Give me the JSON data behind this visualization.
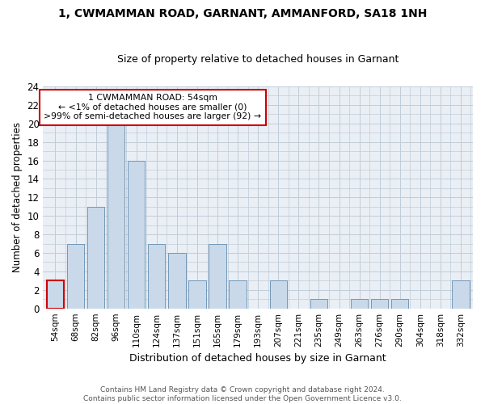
{
  "title": "1, CWMAMMAN ROAD, GARNANT, AMMANFORD, SA18 1NH",
  "subtitle": "Size of property relative to detached houses in Garnant",
  "xlabel": "Distribution of detached houses by size in Garnant",
  "ylabel": "Number of detached properties",
  "categories": [
    "54sqm",
    "68sqm",
    "82sqm",
    "96sqm",
    "110sqm",
    "124sqm",
    "137sqm",
    "151sqm",
    "165sqm",
    "179sqm",
    "193sqm",
    "207sqm",
    "221sqm",
    "235sqm",
    "249sqm",
    "263sqm",
    "276sqm",
    "290sqm",
    "304sqm",
    "318sqm",
    "332sqm"
  ],
  "values": [
    3,
    7,
    11,
    20,
    16,
    7,
    6,
    3,
    7,
    3,
    0,
    3,
    0,
    1,
    0,
    1,
    1,
    1,
    0,
    0,
    3
  ],
  "highlight_index": 0,
  "bar_color": "#c9d9ea",
  "bar_edge_color": "#7098b8",
  "annotation_box_color": "#cc0000",
  "annotation_text": "1 CWMAMMAN ROAD: 54sqm\n← <1% of detached houses are smaller (0)\n>99% of semi-detached houses are larger (92) →",
  "ylim": [
    0,
    24
  ],
  "yticks": [
    0,
    2,
    4,
    6,
    8,
    10,
    12,
    14,
    16,
    18,
    20,
    22,
    24
  ],
  "grid_color": "#c0ccd8",
  "background_color": "#eaeff5",
  "footer1": "Contains HM Land Registry data © Crown copyright and database right 2024.",
  "footer2": "Contains public sector information licensed under the Open Government Licence v3.0."
}
